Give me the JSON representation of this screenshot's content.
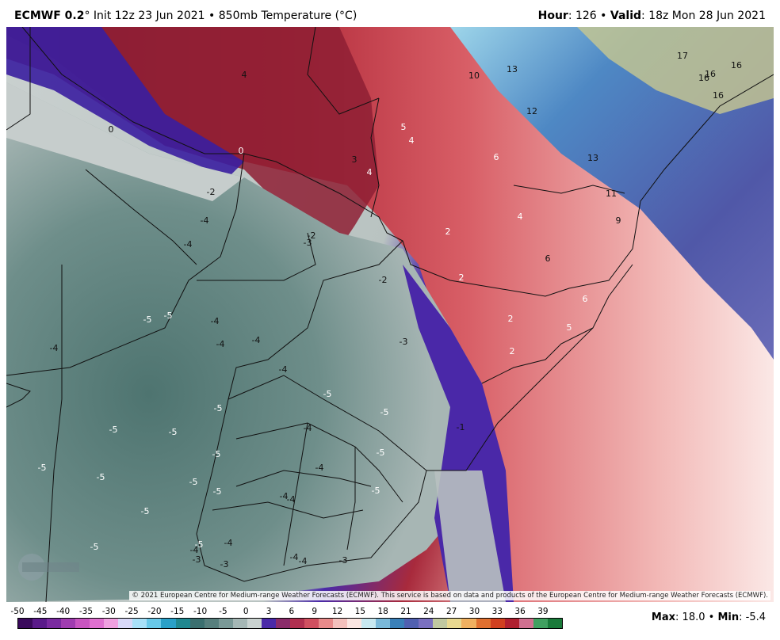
{
  "header": {
    "model": "ECMWF 0.2",
    "init": "° Init 12z 23 Jun 2021",
    "sep": "•",
    "field": "850mb Temperature (°C)",
    "hour_label": "Hour",
    "hour_value": ": 126",
    "valid_label": "Valid",
    "valid_value": ": 18z Mon 28 Jun 2021"
  },
  "copyright": "© 2021 European Centre for Medium-range Weather Forecasts (ECMWF). This service is based on data and products of the European Centre for Medium-range Weather Forecasts (ECMWF).",
  "logo_text": "WEATHERBELL",
  "scale": {
    "ticks": [
      "-50",
      "-45",
      "-40",
      "-35",
      "-30",
      "-25",
      "-20",
      "-15",
      "-10",
      "-5",
      "0",
      "3",
      "6",
      "9",
      "12",
      "15",
      "18",
      "21",
      "24",
      "27",
      "30",
      "33",
      "36",
      "39"
    ],
    "colors": [
      "#3a0a5c",
      "#5a1a8a",
      "#7a2aa0",
      "#a03cb0",
      "#c855c0",
      "#e070d0",
      "#f0a0e0",
      "#d8d8f8",
      "#a8e0f8",
      "#68c8e8",
      "#2aa0c8",
      "#208890",
      "#3b6f6f",
      "#577f7d",
      "#7a9997",
      "#a5b7b5",
      "#c9d2d0",
      "#4a2aa8",
      "#8a2c6a",
      "#b03050",
      "#d05060",
      "#e88a8a",
      "#f4c0bc",
      "#fbe6e2",
      "#c8e8f0",
      "#7ab8d8",
      "#3a80b8",
      "#5060b0",
      "#7a70c0",
      "#c0c8a0",
      "#e8d890",
      "#f0b060",
      "#e07030",
      "#d04020",
      "#b02030",
      "#d07090",
      "#40a060",
      "#1a7a3a"
    ]
  },
  "maxmin": {
    "max_label": "Max",
    "max_value": ": 18.0",
    "sep": "•",
    "min_label": "Min",
    "min_value": ": -5.4"
  },
  "map_labels": [
    {
      "t": "4",
      "c": "dk"
    },
    {
      "t": "0",
      "c": "dk"
    },
    {
      "t": "0",
      "c": "wt"
    },
    {
      "t": "-2",
      "c": "dk"
    },
    {
      "t": "-4",
      "c": "dk"
    },
    {
      "t": "-4",
      "c": "dk"
    },
    {
      "t": "-2",
      "c": "dk"
    },
    {
      "t": "-3",
      "c": "dk"
    },
    {
      "t": "-2",
      "c": "dk"
    },
    {
      "t": "3",
      "c": "dk"
    },
    {
      "t": "4",
      "c": "wt"
    },
    {
      "t": "5",
      "c": "wt"
    },
    {
      "t": "4",
      "c": "wt"
    },
    {
      "t": "10",
      "c": "dk"
    },
    {
      "t": "13",
      "c": "dk"
    },
    {
      "t": "12",
      "c": "dk"
    },
    {
      "t": "6",
      "c": "wt"
    },
    {
      "t": "13",
      "c": "dk"
    },
    {
      "t": "17",
      "c": "dk"
    },
    {
      "t": "16",
      "c": "dk"
    },
    {
      "t": "16",
      "c": "dk"
    },
    {
      "t": "16",
      "c": "dk"
    },
    {
      "t": "16",
      "c": "dk"
    },
    {
      "t": "11",
      "c": "dk"
    },
    {
      "t": "4",
      "c": "wt"
    },
    {
      "t": "2",
      "c": "wt"
    },
    {
      "t": "2",
      "c": "wt"
    },
    {
      "t": "6",
      "c": "dk"
    },
    {
      "t": "9",
      "c": "dk"
    },
    {
      "t": "6",
      "c": "wt"
    },
    {
      "t": "2",
      "c": "wt"
    },
    {
      "t": "5",
      "c": "wt"
    },
    {
      "t": "2",
      "c": "wt"
    },
    {
      "t": "-3",
      "c": "dk"
    },
    {
      "t": "-1",
      "c": "dk"
    },
    {
      "t": "-5",
      "c": "wt"
    },
    {
      "t": "-5",
      "c": "wt"
    },
    {
      "t": "-4",
      "c": "dk"
    },
    {
      "t": "-4",
      "c": "dk"
    },
    {
      "t": "-4",
      "c": "dk"
    },
    {
      "t": "-4",
      "c": "dk"
    },
    {
      "t": "-4",
      "c": "dk"
    },
    {
      "t": "-5",
      "c": "wt"
    },
    {
      "t": "-5",
      "c": "wt"
    },
    {
      "t": "-5",
      "c": "wt"
    },
    {
      "t": "-5",
      "c": "wt"
    },
    {
      "t": "-5",
      "c": "wt"
    },
    {
      "t": "-5",
      "c": "wt"
    },
    {
      "t": "-5",
      "c": "wt"
    },
    {
      "t": "-5",
      "c": "wt"
    },
    {
      "t": "-5",
      "c": "wt"
    },
    {
      "t": "-4",
      "c": "dk"
    },
    {
      "t": "-5",
      "c": "wt"
    },
    {
      "t": "-4",
      "c": "dk"
    },
    {
      "t": "-5",
      "c": "wt"
    },
    {
      "t": "-5",
      "c": "wt"
    },
    {
      "t": "-5",
      "c": "wt"
    },
    {
      "t": "-5",
      "c": "wt"
    },
    {
      "t": "-5",
      "c": "wt"
    },
    {
      "t": "-4",
      "c": "dk"
    },
    {
      "t": "-4",
      "c": "dk"
    },
    {
      "t": "-4",
      "c": "dk"
    },
    {
      "t": "-3",
      "c": "dk"
    },
    {
      "t": "-3",
      "c": "dk"
    },
    {
      "t": "-3",
      "c": "dk"
    },
    {
      "t": "-4",
      "c": "dk"
    },
    {
      "t": "-4",
      "c": "dk"
    },
    {
      "t": "-4",
      "c": "dk"
    },
    {
      "t": "-5",
      "c": "wt"
    }
  ]
}
